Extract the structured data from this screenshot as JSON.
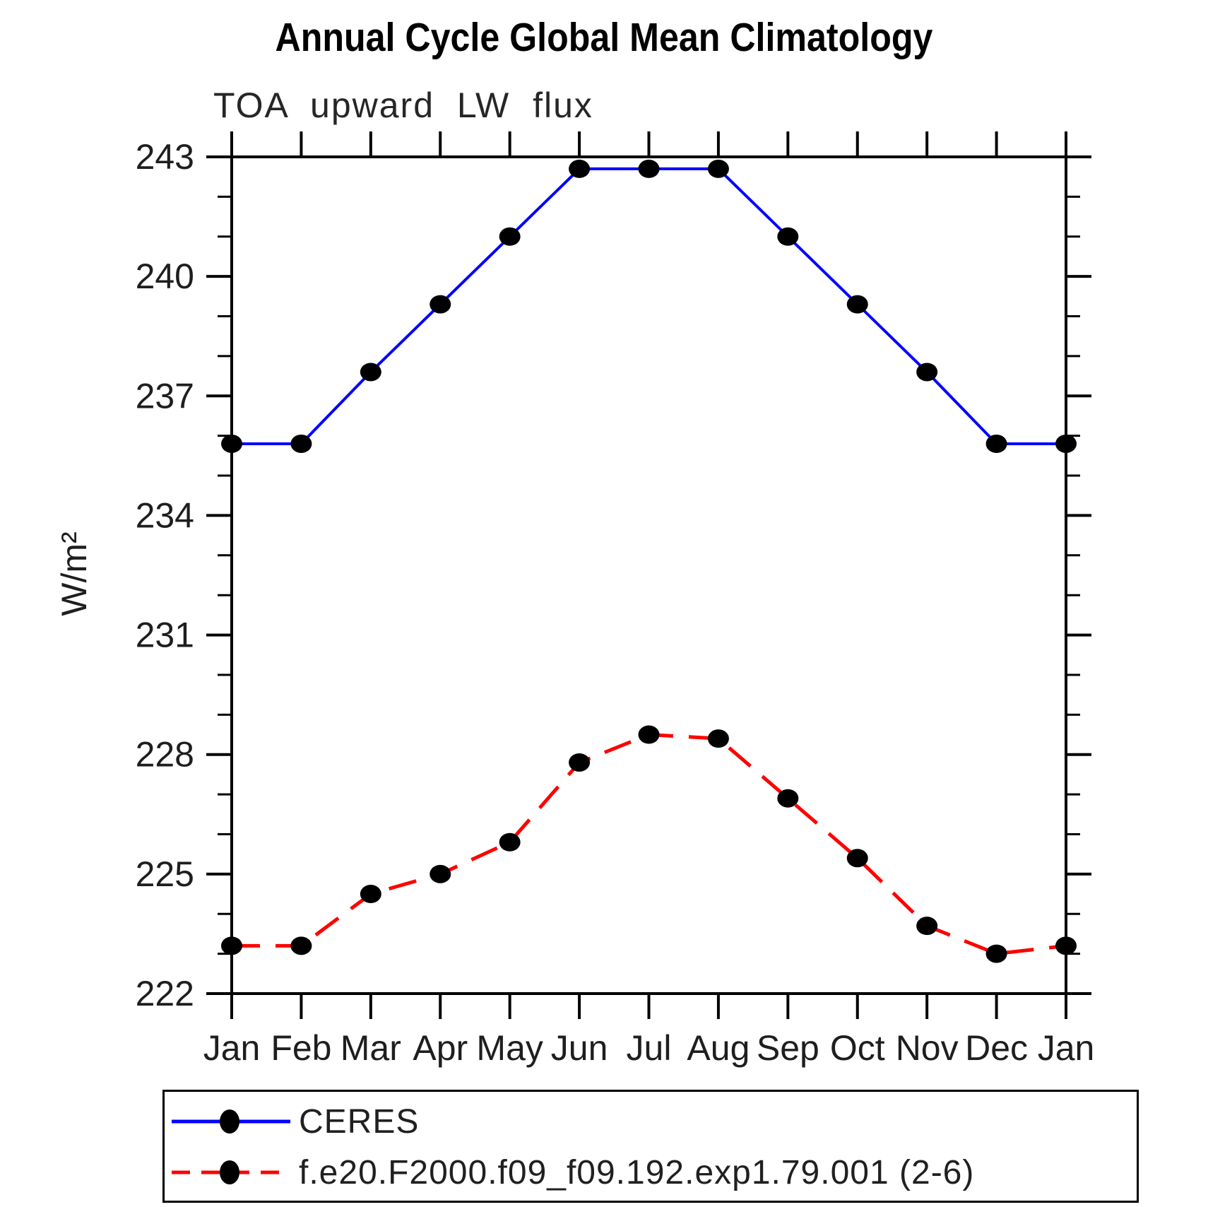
{
  "chart_data": {
    "type": "line",
    "title": "Annual Cycle Global Mean Climatology",
    "subtitle": "TOA upward LW flux",
    "ylabel": "W/m²",
    "categories": [
      "Jan",
      "Feb",
      "Mar",
      "Apr",
      "May",
      "Jun",
      "Jul",
      "Aug",
      "Sep",
      "Oct",
      "Nov",
      "Dec",
      "Jan"
    ],
    "ylim": [
      222,
      243
    ],
    "ytick_major_step": 3,
    "ytick_minor_step": 1,
    "grid": false,
    "legend_position": "bottom-left-box",
    "axis_color": "#000000",
    "marker": {
      "shape": "filled-circle",
      "color": "#000000"
    },
    "series": [
      {
        "name": "CERES",
        "line_color": "#0000ff",
        "line_style": "solid",
        "values": [
          235.8,
          235.8,
          237.6,
          239.3,
          241.0,
          242.7,
          242.7,
          242.7,
          241.0,
          239.3,
          237.6,
          235.8,
          235.8
        ]
      },
      {
        "name": "f.e20.F2000.f09_f09.192.exp1.79.001 (2-6)",
        "line_color": "#ff0000",
        "line_style": "dashed",
        "values": [
          223.2,
          223.2,
          224.5,
          225.0,
          225.8,
          227.8,
          228.5,
          228.4,
          226.9,
          225.4,
          223.7,
          223.0,
          223.2
        ]
      }
    ]
  }
}
